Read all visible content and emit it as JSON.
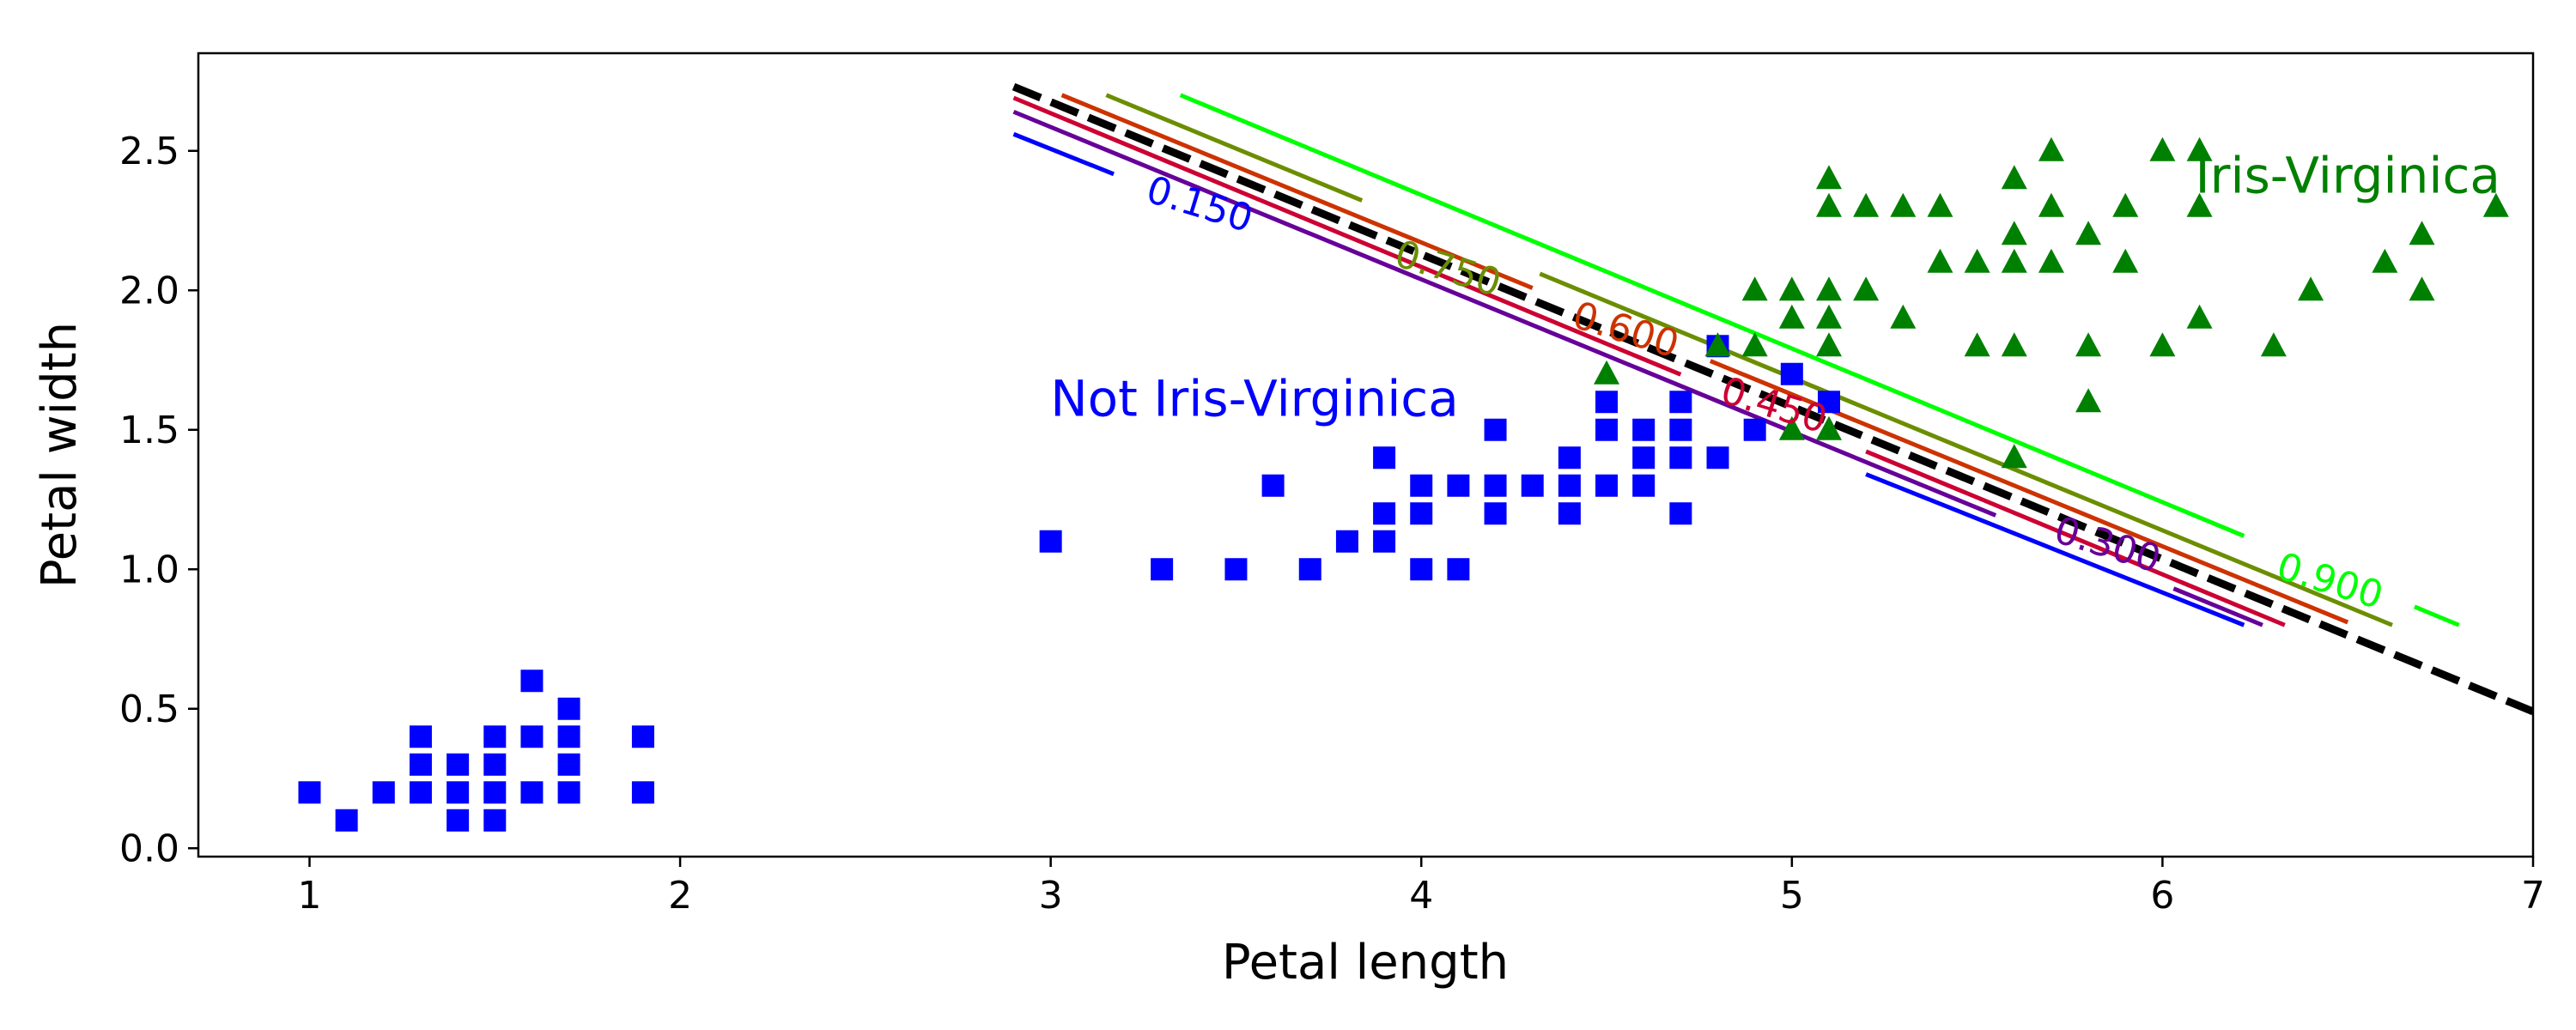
{
  "chart_data": {
    "type": "scatter",
    "xlabel": "Petal length",
    "ylabel": "Petal width",
    "xlim": [
      0.7,
      7.0
    ],
    "ylim": [
      -0.03,
      2.85
    ],
    "xticks": [
      "1",
      "2",
      "3",
      "4",
      "5",
      "6",
      "7"
    ],
    "yticks": [
      "0.0",
      "0.5",
      "1.0",
      "1.5",
      "2.0",
      "2.5"
    ],
    "grid": false,
    "legend": "none",
    "series": [
      {
        "marker": "square",
        "color": "#0000ff",
        "points": [
          [
            1.0,
            0.2
          ],
          [
            1.1,
            0.1
          ],
          [
            1.2,
            0.2
          ],
          [
            1.3,
            0.2
          ],
          [
            1.3,
            0.3
          ],
          [
            1.3,
            0.4
          ],
          [
            1.4,
            0.1
          ],
          [
            1.4,
            0.2
          ],
          [
            1.4,
            0.3
          ],
          [
            1.5,
            0.1
          ],
          [
            1.5,
            0.2
          ],
          [
            1.5,
            0.3
          ],
          [
            1.5,
            0.4
          ],
          [
            1.6,
            0.2
          ],
          [
            1.6,
            0.4
          ],
          [
            1.6,
            0.6
          ],
          [
            1.7,
            0.2
          ],
          [
            1.7,
            0.3
          ],
          [
            1.7,
            0.4
          ],
          [
            1.7,
            0.5
          ],
          [
            1.9,
            0.2
          ],
          [
            1.9,
            0.4
          ],
          [
            3.0,
            1.1
          ],
          [
            3.3,
            1.0
          ],
          [
            3.5,
            1.0
          ],
          [
            3.6,
            1.3
          ],
          [
            3.7,
            1.0
          ],
          [
            3.8,
            1.1
          ],
          [
            3.9,
            1.1
          ],
          [
            3.9,
            1.2
          ],
          [
            3.9,
            1.4
          ],
          [
            4.0,
            1.0
          ],
          [
            4.0,
            1.2
          ],
          [
            4.0,
            1.3
          ],
          [
            4.1,
            1.0
          ],
          [
            4.1,
            1.3
          ],
          [
            4.2,
            1.2
          ],
          [
            4.2,
            1.3
          ],
          [
            4.2,
            1.5
          ],
          [
            4.3,
            1.3
          ],
          [
            4.4,
            1.2
          ],
          [
            4.4,
            1.3
          ],
          [
            4.4,
            1.4
          ],
          [
            4.5,
            1.3
          ],
          [
            4.5,
            1.5
          ],
          [
            4.5,
            1.6
          ],
          [
            4.6,
            1.3
          ],
          [
            4.6,
            1.4
          ],
          [
            4.6,
            1.5
          ],
          [
            4.7,
            1.2
          ],
          [
            4.7,
            1.4
          ],
          [
            4.7,
            1.5
          ],
          [
            4.7,
            1.6
          ],
          [
            4.8,
            1.4
          ],
          [
            4.8,
            1.8
          ],
          [
            4.9,
            1.5
          ],
          [
            5.0,
            1.7
          ],
          [
            5.1,
            1.6
          ]
        ]
      },
      {
        "marker": "triangle",
        "color": "#008000",
        "points": [
          [
            4.5,
            1.7
          ],
          [
            4.8,
            1.8
          ],
          [
            4.9,
            1.8
          ],
          [
            4.9,
            2.0
          ],
          [
            5.0,
            1.5
          ],
          [
            5.0,
            1.9
          ],
          [
            5.0,
            2.0
          ],
          [
            5.1,
            1.5
          ],
          [
            5.1,
            1.8
          ],
          [
            5.1,
            1.9
          ],
          [
            5.1,
            2.0
          ],
          [
            5.1,
            2.3
          ],
          [
            5.1,
            2.4
          ],
          [
            5.2,
            2.0
          ],
          [
            5.2,
            2.3
          ],
          [
            5.3,
            1.9
          ],
          [
            5.3,
            2.3
          ],
          [
            5.4,
            2.1
          ],
          [
            5.4,
            2.3
          ],
          [
            5.5,
            1.8
          ],
          [
            5.5,
            2.1
          ],
          [
            5.6,
            1.4
          ],
          [
            5.6,
            1.8
          ],
          [
            5.6,
            2.1
          ],
          [
            5.6,
            2.2
          ],
          [
            5.6,
            2.4
          ],
          [
            5.7,
            2.1
          ],
          [
            5.7,
            2.3
          ],
          [
            5.7,
            2.5
          ],
          [
            5.8,
            1.6
          ],
          [
            5.8,
            1.8
          ],
          [
            5.8,
            2.2
          ],
          [
            5.9,
            2.1
          ],
          [
            5.9,
            2.3
          ],
          [
            6.0,
            1.8
          ],
          [
            6.0,
            2.5
          ],
          [
            6.1,
            1.9
          ],
          [
            6.1,
            2.3
          ],
          [
            6.1,
            2.5
          ],
          [
            6.3,
            1.8
          ],
          [
            6.4,
            2.0
          ],
          [
            6.6,
            2.1
          ],
          [
            6.7,
            2.0
          ],
          [
            6.7,
            2.2
          ],
          [
            6.9,
            2.3
          ]
        ]
      }
    ],
    "decision_boundary": {
      "style": "dashed",
      "color": "#000000",
      "from": [
        2.9,
        2.73
      ],
      "to": [
        7.0,
        0.49
      ]
    },
    "contours": [
      {
        "label": "0.150",
        "color": "#0000ff",
        "from": [
          2.9,
          2.56
        ],
        "to": [
          6.22,
          0.8
        ],
        "gap": [
          3.17,
          5.2
        ],
        "label_at": [
          3.4,
          2.3
        ],
        "angle": 17
      },
      {
        "label": "0.300",
        "color": "#660099",
        "from": [
          2.9,
          2.64
        ],
        "to": [
          6.27,
          0.8
        ],
        "gap": [
          5.55,
          6.03
        ],
        "label_at": [
          5.85,
          1.08
        ],
        "angle": 17
      },
      {
        "label": "0.450",
        "color": "#cc0033",
        "from": [
          2.9,
          2.69
        ],
        "to": [
          6.33,
          0.8
        ],
        "gap": [
          4.7,
          5.2
        ],
        "label_at": [
          4.95,
          1.58
        ],
        "angle": 17
      },
      {
        "label": "0.600",
        "color": "#cc3300",
        "from": [
          3.03,
          2.7
        ],
        "to": [
          6.5,
          0.81
        ],
        "gap": [
          4.3,
          4.78
        ],
        "label_at": [
          4.55,
          1.85
        ],
        "angle": 17
      },
      {
        "label": "0.750",
        "color": "#6b8e00",
        "from": [
          3.15,
          2.7
        ],
        "to": [
          6.62,
          0.8
        ],
        "gap": [
          3.84,
          4.32
        ],
        "label_at": [
          4.07,
          2.07
        ],
        "angle": 17
      },
      {
        "label": "0.900",
        "color": "#00ff00",
        "from": [
          3.35,
          2.7
        ],
        "to": [
          6.8,
          0.8
        ],
        "gap": [
          6.22,
          6.68
        ],
        "label_at": [
          6.45,
          0.95
        ],
        "angle": 17
      }
    ],
    "annotations": [
      {
        "text": "Not Iris-Virginica",
        "color": "#0000ff",
        "at": [
          3.55,
          1.55
        ]
      },
      {
        "text": "Iris-Virginica",
        "color": "#008000",
        "at": [
          6.5,
          2.35
        ]
      }
    ]
  }
}
